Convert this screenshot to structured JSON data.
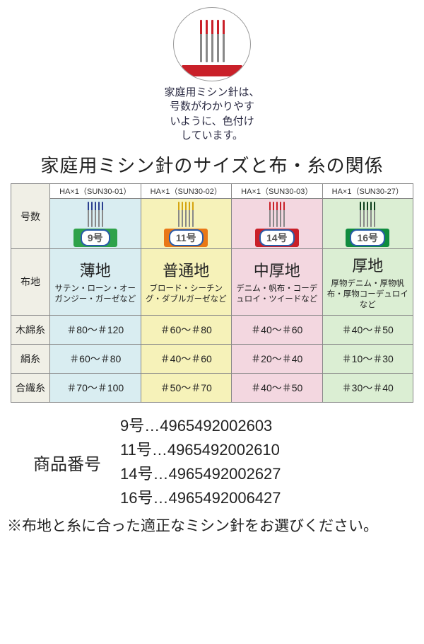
{
  "top_caption": "家庭用ミシン針は、\n号数がわかりやす\nいように、色付け\nしています。",
  "title": "家庭用ミシン針のサイズと布・糸の関係",
  "side_headers": [
    "号数",
    "布地",
    "木綿糸",
    "絹糸",
    "合繊糸"
  ],
  "columns": [
    {
      "sku": "HA×1（SUN30-01）",
      "size_label": "9号",
      "pack_needle_color": "#2a3e8f",
      "pack_base_color": "#2fa24a",
      "col_bg": "#d9edf1",
      "fabric_name": "薄地",
      "fabric_desc": "サテン・ローン・オーガンジー・ガーゼなど",
      "threads": {
        "cotton": "＃80～＃120",
        "silk": "＃60～＃80",
        "synthetic": "＃70～＃100"
      }
    },
    {
      "sku": "HA×1（SUN30-02）",
      "size_label": "11号",
      "pack_needle_color": "#d5a40f",
      "pack_base_color": "#e97817",
      "col_bg": "#f6f2b9",
      "fabric_name": "普通地",
      "fabric_desc": "ブロード・シーチング・ダブルガーゼなど",
      "threads": {
        "cotton": "＃60～＃80",
        "silk": "＃40～＃60",
        "synthetic": "＃50～＃70"
      }
    },
    {
      "sku": "HA×1（SUN30-03）",
      "size_label": "14号",
      "pack_needle_color": "#c92029",
      "pack_base_color": "#c92029",
      "col_bg": "#f3d7e0",
      "fabric_name": "中厚地",
      "fabric_desc": "デニム・帆布・コーデュロイ・ツイードなど",
      "threads": {
        "cotton": "＃40～＃60",
        "silk": "＃20～＃40",
        "synthetic": "＃40～＃50"
      }
    },
    {
      "sku": "HA×1（SUN30-27）",
      "size_label": "16号",
      "pack_needle_color": "#0d3f1c",
      "pack_base_color": "#0f8c3e",
      "col_bg": "#dbeed3",
      "fabric_name": "厚地",
      "fabric_desc": "厚物デニム・厚物帆布・厚物コーデュロイなど",
      "threads": {
        "cotton": "＃40～＃50",
        "silk": "＃10～＃30",
        "synthetic": "＃30～＃40"
      }
    }
  ],
  "codes_label": "商品番号",
  "codes": [
    "9号…4965492002603",
    "11号…4965492002610",
    "14号…4965492002627",
    "16号…4965492006427"
  ],
  "footnote": "※布地と糸に合った適正なミシン針をお選びください。"
}
